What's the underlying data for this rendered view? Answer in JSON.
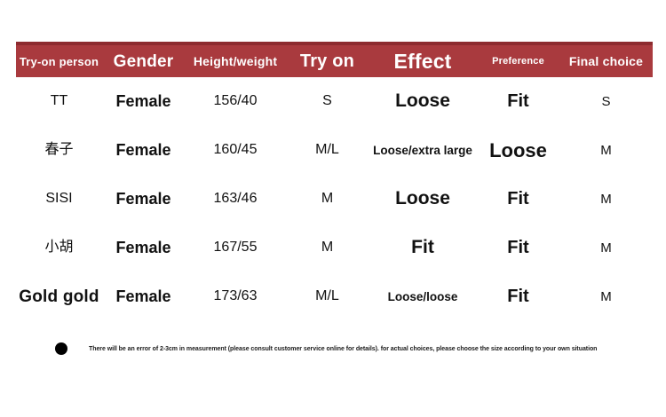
{
  "table": {
    "columns": [
      {
        "label": "Try-on person"
      },
      {
        "label": "Gender"
      },
      {
        "label": "Height/weight"
      },
      {
        "label": "Try on"
      },
      {
        "label": "Effect"
      },
      {
        "label": "Preference"
      },
      {
        "label": "Final choice"
      }
    ],
    "rows": [
      [
        "TT",
        "Female",
        "156/40",
        "S",
        "Loose",
        "Fit",
        "S"
      ],
      [
        "春子",
        "Female",
        "160/45",
        "M/L",
        "Loose/extra large",
        "Loose",
        "M"
      ],
      [
        "SISI",
        "Female",
        "163/46",
        "M",
        "Loose",
        "Fit",
        "M"
      ],
      [
        "小胡",
        "Female",
        "167/55",
        "M",
        "Fit",
        "Fit",
        "M"
      ],
      [
        "Gold gold",
        "Female",
        "173/63",
        "M/L",
        "Loose/loose",
        "Fit",
        "M"
      ]
    ]
  },
  "footnote": {
    "text": "There will be an error of 2-3cm in measurement (please consult customer service online for details). for actual choices, please choose the size according to your own situation"
  },
  "colors": {
    "header_bg": "#a93a3e",
    "header_top_border": "#8d2b2f",
    "header_text": "#ffffff",
    "body_text": "#111111"
  }
}
